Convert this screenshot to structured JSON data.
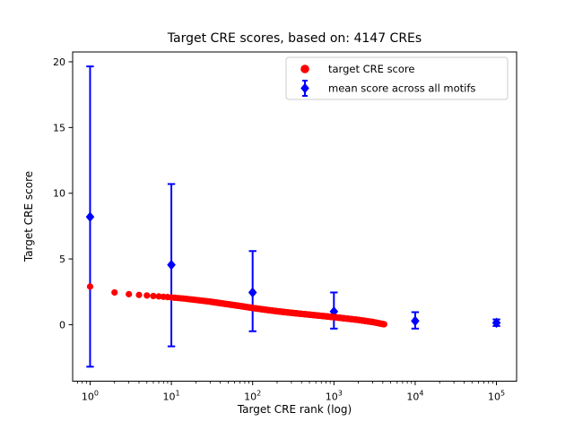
{
  "chart_data": {
    "type": "scatter",
    "title": "Target CRE scores, based on: 4147 CREs",
    "xlabel": "Target CRE rank (log)",
    "ylabel": "Target CRE score",
    "xscale": "log",
    "xlim": [
      0.61,
      177000
    ],
    "ylim": [
      -4.3,
      20.75
    ],
    "xticks": [
      1,
      10,
      100,
      1000,
      10000,
      100000
    ],
    "xtick_exponents": [
      0,
      1,
      2,
      3,
      4,
      5
    ],
    "yticks": [
      0,
      5,
      10,
      15,
      20
    ],
    "grid": false,
    "n_cres": 4147,
    "legend": {
      "position": "upper center-right",
      "border_color": "#cccccc",
      "items": [
        {
          "label": "target CRE score",
          "marker": "circle",
          "color": "#ff0000"
        },
        {
          "label": "mean score across all motifs",
          "marker": "diamond-errorbar",
          "color": "#0000ff"
        }
      ]
    },
    "series": [
      {
        "name": "target CRE score",
        "type": "scatter",
        "marker": "circle",
        "color": "#ff0000",
        "n_points": 4147,
        "points_sampled_rank_score": [
          [
            1,
            2.9
          ],
          [
            2,
            2.45
          ],
          [
            3,
            2.32
          ],
          [
            4,
            2.26
          ],
          [
            5,
            2.22
          ],
          [
            6,
            2.18
          ],
          [
            7,
            2.15
          ],
          [
            8,
            2.12
          ],
          [
            9,
            2.1
          ],
          [
            10,
            2.07
          ],
          [
            15,
            1.97
          ],
          [
            20,
            1.88
          ],
          [
            30,
            1.75
          ],
          [
            50,
            1.55
          ],
          [
            70,
            1.42
          ],
          [
            100,
            1.27
          ],
          [
            150,
            1.12
          ],
          [
            200,
            1.02
          ],
          [
            300,
            0.9
          ],
          [
            500,
            0.76
          ],
          [
            700,
            0.67
          ],
          [
            1000,
            0.57
          ],
          [
            1500,
            0.45
          ],
          [
            2000,
            0.36
          ],
          [
            3000,
            0.2
          ],
          [
            4147,
            0.03
          ]
        ]
      },
      {
        "name": "mean score across all motifs",
        "type": "errorbar",
        "marker": "diamond",
        "color": "#0000ff",
        "points": [
          {
            "rank": 1,
            "mean": 8.2,
            "lo": -3.2,
            "hi": 19.65
          },
          {
            "rank": 10,
            "mean": 4.55,
            "lo": -1.65,
            "hi": 10.7
          },
          {
            "rank": 100,
            "mean": 2.45,
            "lo": -0.5,
            "hi": 5.6
          },
          {
            "rank": 1000,
            "mean": 1.0,
            "lo": -0.3,
            "hi": 2.45
          },
          {
            "rank": 10000,
            "mean": 0.28,
            "lo": -0.3,
            "hi": 0.95
          },
          {
            "rank": 100000,
            "mean": 0.14,
            "lo": -0.1,
            "hi": 0.4
          }
        ]
      }
    ]
  }
}
